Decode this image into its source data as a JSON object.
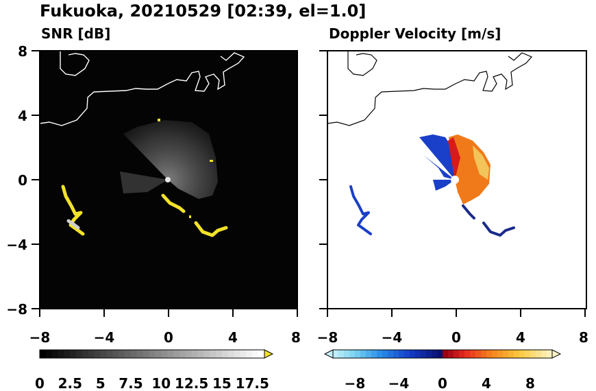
{
  "title": "Fukuoka, 20210529 [02:39, el=1.0]",
  "colors": {
    "snr_background": "#040404",
    "snr_echo": "#f2e22a",
    "doppler_negative": "#1a3fc8",
    "doppler_positive": "#f07a1a",
    "coastline_on_snr": "#ffffff",
    "coastline_on_doppler": "#000000"
  },
  "chart_data": [
    {
      "type": "heatmap",
      "title": "SNR [dB]",
      "xlim": [
        -8,
        8
      ],
      "ylim": [
        -8,
        8
      ],
      "xticks": [
        "−8",
        "−4",
        "0",
        "4",
        "8"
      ],
      "yticks": [
        "8",
        "4",
        "0",
        "−4",
        "−8"
      ],
      "colorbar": {
        "min": 0,
        "max": 18.5,
        "extend": "max",
        "ticks": [
          "0",
          "2.5",
          "5",
          "7.5",
          "10",
          "12.5",
          "15",
          "17.5"
        ],
        "tick_values": [
          0,
          2.5,
          5,
          7.5,
          10,
          12.5,
          15,
          17.5
        ],
        "colormap": "grayscale",
        "extend_color": "#f2e22a"
      }
    },
    {
      "type": "heatmap",
      "title": "Doppler Velocity [m/s]",
      "xlim": [
        -8,
        8
      ],
      "ylim": [
        -8,
        8
      ],
      "xticks": [
        "−8",
        "−4",
        "0",
        "4",
        "8"
      ],
      "yticks": [],
      "colorbar": {
        "min": -10,
        "max": 10,
        "extend": "both",
        "ticks": [
          "−8",
          "−4",
          "0",
          "4",
          "8"
        ],
        "tick_values": [
          -8,
          -4,
          0,
          4,
          8
        ],
        "colormap": "blue-white-red-yellow"
      }
    }
  ]
}
